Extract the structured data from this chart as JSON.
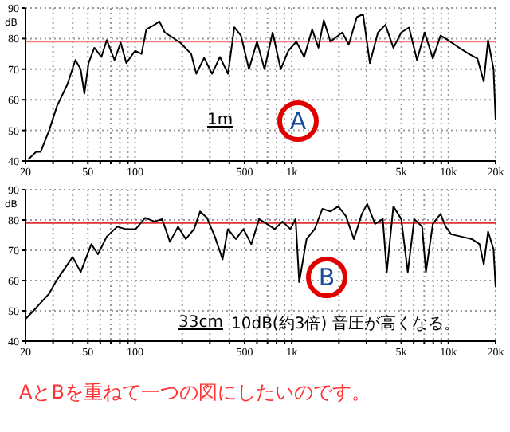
{
  "chart_data": [
    {
      "type": "line",
      "ylabel": "dB",
      "log": "x",
      "grid": true,
      "xlim": [
        20,
        20000
      ],
      "ylim": [
        40,
        90
      ],
      "yticks": [
        40,
        50,
        60,
        70,
        80,
        90
      ],
      "xticks": [
        20,
        {
          "value": 30,
          "label": null
        },
        {
          "value": 40,
          "label": null
        },
        50,
        {
          "value": 60,
          "label": null
        },
        {
          "value": 70,
          "label": null
        },
        {
          "value": 80,
          "label": null
        },
        {
          "value": 90,
          "label": null
        },
        100,
        {
          "value": 200,
          "label": null
        },
        {
          "value": 300,
          "label": null
        },
        {
          "value": 400,
          "label": null
        },
        500,
        {
          "value": 600,
          "label": null
        },
        {
          "value": 700,
          "label": null
        },
        {
          "value": 800,
          "label": null
        },
        {
          "value": 900,
          "label": null
        },
        {
          "value": 1000,
          "label": "1k"
        },
        {
          "value": 2000,
          "label": null
        },
        {
          "value": 3000,
          "label": null
        },
        {
          "value": 4000,
          "label": null
        },
        {
          "value": 5000,
          "label": "5k"
        },
        {
          "value": 6000,
          "label": null
        },
        {
          "value": 7000,
          "label": null
        },
        {
          "value": 8000,
          "label": null
        },
        {
          "value": 9000,
          "label": null
        },
        {
          "value": 10000,
          "label": "10k"
        },
        {
          "value": 20000,
          "label": "20k"
        }
      ],
      "ref_lines": [
        {
          "axis": "y",
          "value": 79,
          "color": "#f08080"
        }
      ],
      "series": [
        {
          "color": "#000000",
          "x": [
            20.8,
            23.4,
            25,
            28.3,
            31.8,
            37,
            41.6,
            45,
            47.5,
            50.5,
            55,
            61,
            66,
            74,
            81,
            88,
            100,
            110,
            118,
            133,
            143,
            155,
            174,
            195,
            228,
            246,
            276,
            310,
            348,
            392,
            430,
            474,
            533,
            600,
            670,
            755,
            850,
            950,
            1070,
            1200,
            1350,
            1480,
            1600,
            1765,
            2100,
            2310,
            2600,
            2850,
            3150,
            3550,
            3960,
            4450,
            5000,
            5600,
            6300,
            7050,
            7950,
            8900,
            10000,
            11700,
            13500,
            15300,
            16800,
            17900,
            19400,
            20000
          ],
          "values": [
            40.5,
            43,
            43,
            50,
            58,
            65,
            73,
            70,
            62,
            72,
            77,
            74,
            79.5,
            73,
            78.7,
            72,
            76,
            75,
            83,
            84.5,
            85.6,
            82,
            80.3,
            78.6,
            75,
            68.5,
            73.7,
            68.5,
            74,
            68.5,
            83.7,
            81,
            70,
            79,
            70,
            82,
            70,
            76,
            79,
            74,
            83,
            77,
            86,
            79,
            82,
            78,
            87,
            88,
            72,
            82,
            84.5,
            77,
            82,
            83.6,
            73,
            82,
            73.5,
            81,
            79.4,
            77,
            75,
            73.5,
            66,
            79.5,
            70,
            53.4
          ]
        }
      ],
      "annotations": [
        "1m",
        "A"
      ]
    },
    {
      "type": "line",
      "ylabel": "dB",
      "log": "x",
      "grid": true,
      "xlim": [
        20,
        20000
      ],
      "ylim": [
        40,
        90
      ],
      "yticks": [
        40,
        50,
        60,
        70,
        80,
        90
      ],
      "xticks": [
        20,
        {
          "value": 30,
          "label": null
        },
        {
          "value": 40,
          "label": null
        },
        50,
        {
          "value": 60,
          "label": null
        },
        {
          "value": 70,
          "label": null
        },
        {
          "value": 80,
          "label": null
        },
        {
          "value": 90,
          "label": null
        },
        100,
        {
          "value": 200,
          "label": null
        },
        {
          "value": 300,
          "label": null
        },
        {
          "value": 400,
          "label": null
        },
        500,
        {
          "value": 600,
          "label": null
        },
        {
          "value": 700,
          "label": null
        },
        {
          "value": 800,
          "label": null
        },
        {
          "value": 900,
          "label": null
        },
        {
          "value": 1000,
          "label": "1k"
        },
        {
          "value": 2000,
          "label": null
        },
        {
          "value": 3000,
          "label": null
        },
        {
          "value": 4000,
          "label": null
        },
        {
          "value": 5000,
          "label": "5k"
        },
        {
          "value": 6000,
          "label": null
        },
        {
          "value": 7000,
          "label": null
        },
        {
          "value": 8000,
          "label": null
        },
        {
          "value": 9000,
          "label": null
        },
        {
          "value": 10000,
          "label": "10k"
        },
        {
          "value": 20000,
          "label": "20k"
        }
      ],
      "ref_lines": [
        {
          "axis": "y",
          "value": 79,
          "color": "#e03030"
        }
      ],
      "series": [
        {
          "color": "#000000",
          "x": [
            20,
            23.4,
            28.3,
            31.8,
            40,
            45,
            52.6,
            58,
            66,
            77,
            87,
            101,
            116,
            133,
            149,
            167,
            188,
            211,
            238,
            260,
            288,
            323,
            362,
            391,
            440,
            492,
            552,
            619,
            694,
            778,
            873,
            979,
            1058,
            1116,
            1243,
            1400,
            1570,
            1765,
            1980,
            2220,
            2490,
            2800,
            3030,
            3400,
            3810,
            4040,
            4450,
            5000,
            5500,
            6050,
            6790,
            7180,
            7950,
            8900,
            9600,
            10400,
            12100,
            14100,
            15800,
            16800,
            17900,
            19400,
            20000
          ],
          "values": [
            47.3,
            51,
            55.7,
            60.3,
            67.8,
            62.8,
            72,
            68.7,
            74.5,
            77.8,
            77,
            77,
            80.7,
            79.5,
            80.3,
            72.8,
            77.8,
            73.7,
            77,
            82.8,
            80.7,
            74.5,
            67,
            77,
            73.7,
            77,
            72,
            80.3,
            78.7,
            77,
            79.5,
            77,
            80.3,
            59.5,
            73.7,
            77,
            83.7,
            82.8,
            84.5,
            81.2,
            73.7,
            82,
            85.3,
            78.7,
            80.3,
            62.8,
            84.5,
            80.3,
            62.8,
            80.3,
            77.8,
            62.8,
            78.7,
            82,
            77.8,
            75.3,
            74.5,
            73.7,
            72,
            65.3,
            76.2,
            70.3,
            57.8
          ]
        }
      ],
      "annotations": [
        "33cm",
        "10dB(約3倍) 音圧が高くなる。",
        "B",
        "AとBを重ねて一つの図にしたいのです。"
      ]
    }
  ]
}
